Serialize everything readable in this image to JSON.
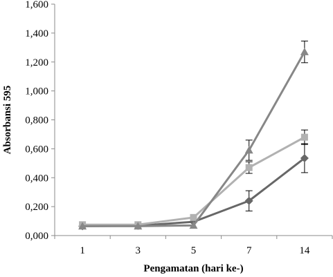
{
  "chart_data": {
    "type": "line",
    "xlabel": "Pengamatan (hari ke-)",
    "ylabel": "Absorbansi 595",
    "categories": [
      "1",
      "3",
      "5",
      "7",
      "14"
    ],
    "ylim": [
      0,
      1.6
    ],
    "yticks": [
      0,
      0.2,
      0.4,
      0.6,
      0.8,
      1.0,
      1.2,
      1.4,
      1.6
    ],
    "ytick_labels": [
      "0,000",
      "0,200",
      "0,400",
      "0,600",
      "0,800",
      "1,000",
      "1,200",
      "1,400",
      "1,600"
    ],
    "grid": false,
    "series": [
      {
        "marker": "diamond",
        "color": "#676767",
        "values": [
          0.065,
          0.068,
          0.095,
          0.24,
          0.535
        ],
        "errors": [
          0.0,
          0.0,
          0.0,
          0.07,
          0.1
        ]
      },
      {
        "marker": "square",
        "color": "#b1b1b1",
        "values": [
          0.075,
          0.075,
          0.125,
          0.47,
          0.68
        ],
        "errors": [
          0.0,
          0.0,
          0.0,
          0.04,
          0.05
        ]
      },
      {
        "marker": "triangle",
        "color": "#878787",
        "values": [
          0.065,
          0.065,
          0.07,
          0.59,
          1.27
        ],
        "errors": [
          0.0,
          0.0,
          0.0,
          0.07,
          0.075
        ]
      }
    ]
  }
}
